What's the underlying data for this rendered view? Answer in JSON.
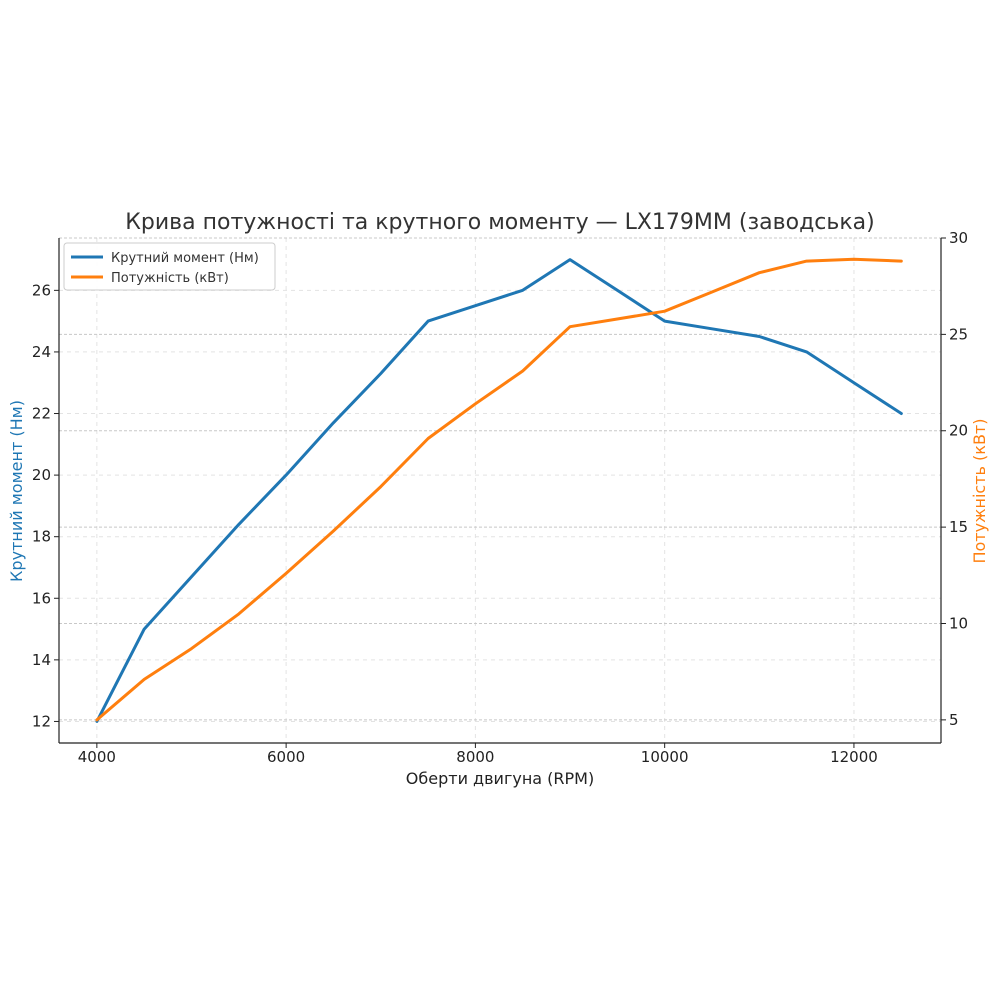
{
  "chart_data": {
    "type": "line",
    "title": "Крива потужності та крутного моменту — LX179MM (заводська)",
    "xlabel": "Оберти двигуна (RPM)",
    "ylabel_left": "Крутний момент (Нм)",
    "ylabel_right": "Потужність (кВт)",
    "x": [
      4000,
      4500,
      5000,
      5500,
      6000,
      6500,
      7000,
      7500,
      8000,
      8500,
      9000,
      9500,
      10000,
      10500,
      11000,
      11500,
      12000,
      12500
    ],
    "xlim": [
      3600,
      12920
    ],
    "ylim_left": [
      11.3,
      27.7
    ],
    "ylim_right": [
      3.8,
      30.0
    ],
    "xticks": [
      4000,
      6000,
      8000,
      10000,
      12000
    ],
    "yticks_left": [
      12,
      14,
      16,
      18,
      20,
      22,
      24,
      26
    ],
    "yticks_right": [
      5,
      10,
      15,
      20,
      25,
      30
    ],
    "grid": true,
    "legend_position": "top-left",
    "colors": {
      "torque": "#1f77b4",
      "power": "#ff7f0e",
      "axis": "#222222",
      "grid": "#cccccc"
    },
    "series": [
      {
        "name": "Крутний момент (Нм)",
        "axis": "left",
        "color": "#1f77b4",
        "values": [
          12,
          15,
          16.7,
          18.4,
          20,
          21.7,
          23.3,
          25,
          25.5,
          26,
          27,
          26,
          25,
          24.75,
          24.5,
          24,
          23,
          22
        ]
      },
      {
        "name": "Потужність (кВт)",
        "axis": "right",
        "color": "#ff7f0e",
        "values": [
          5.0,
          7.1,
          8.7,
          10.5,
          12.6,
          14.8,
          17.1,
          19.6,
          21.4,
          23.1,
          25.4,
          25.8,
          26.2,
          27.2,
          28.2,
          28.8,
          28.9,
          28.8
        ]
      }
    ]
  }
}
